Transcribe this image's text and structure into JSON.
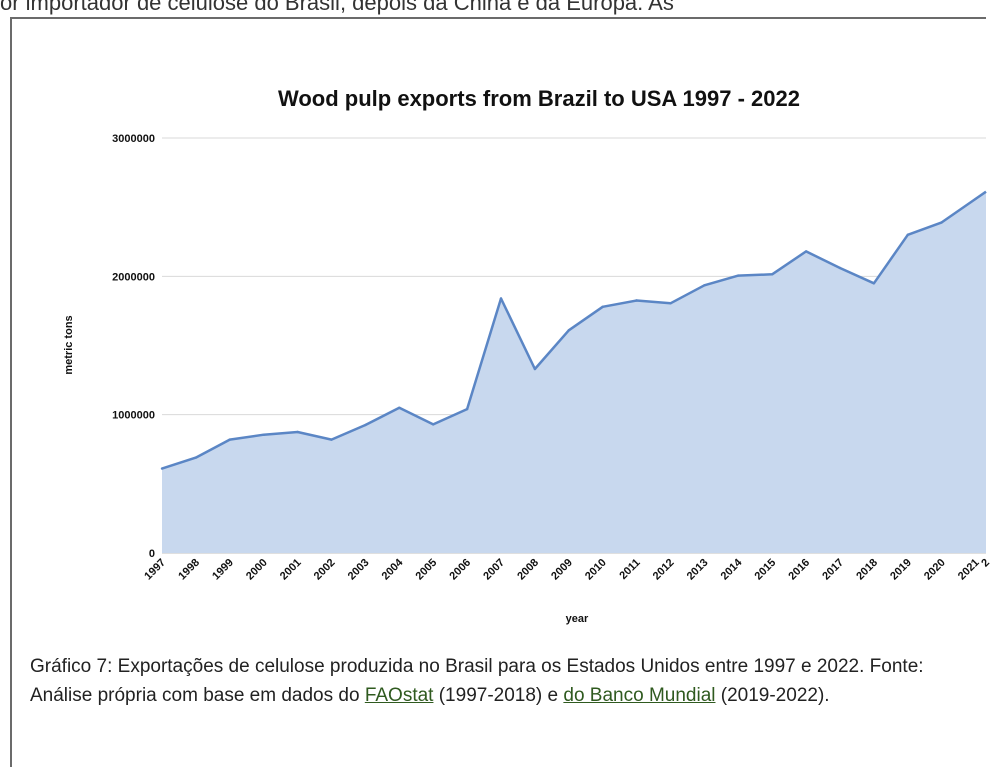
{
  "top_text": "or importador de celulose do Brasil, depois da China e da Europa. As",
  "caption": {
    "text_before": "Gráfico 7: Exportações de celulose produzida no Brasil para os Estados Unidos entre 1997 e 2022. Fonte: Análise própria com base em dados do ",
    "link1": "FAOstat",
    "text_middle": " (1997-2018) e ",
    "link2": "do Banco Mundial",
    "text_after": " (2019-2022)."
  },
  "colors": {
    "line": "#5b86c5",
    "fill": "#c8d8ee",
    "grid": "#d9d9d9",
    "link": "#2f5a1f"
  },
  "chart_data": {
    "type": "area",
    "title": "Wood pulp exports from Brazil to USA 1997 - 2022",
    "xlabel": "year",
    "ylabel": "metric tons",
    "ylim": [
      0,
      3000000
    ],
    "yticks": [
      "0",
      "1000000",
      "2000000",
      "3000000"
    ],
    "grid": true,
    "x": [
      "1997",
      "1998",
      "1999",
      "2000",
      "2001",
      "2002",
      "2003",
      "2004",
      "2005",
      "2006",
      "2007",
      "2008",
      "2009",
      "2010",
      "2011",
      "2012",
      "2013",
      "2014",
      "2015",
      "2016",
      "2017",
      "2018",
      "2019",
      "2020",
      "2021"
    ],
    "values": [
      610000,
      690000,
      820000,
      855000,
      875000,
      820000,
      925000,
      1050000,
      930000,
      1040000,
      1840000,
      1330000,
      1610000,
      1780000,
      1825000,
      1805000,
      1935000,
      2005000,
      2015000,
      2180000,
      2060000,
      1950000,
      2300000,
      2390000,
      2560000
    ],
    "partial_tick_label": "2"
  }
}
